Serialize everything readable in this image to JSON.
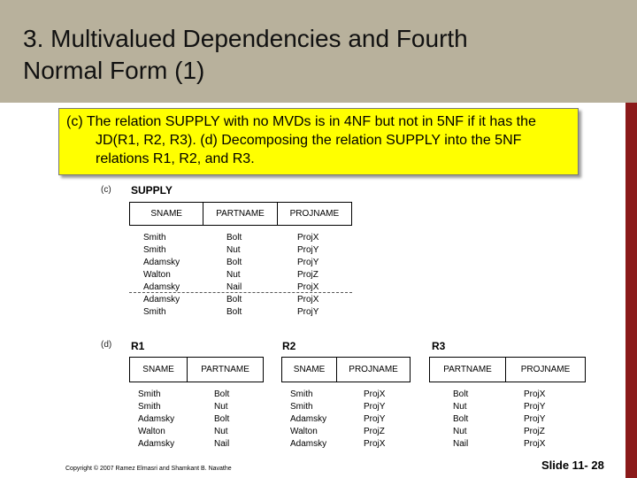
{
  "slide": {
    "title_line1": "3. Multivalued Dependencies and Fourth",
    "title_line2": "Normal Form (1)",
    "callout": "(c) The relation SUPPLY with no MVDs is in 4NF but not in 5NF if it has the JD(R1, R2, R3). (d) Decomposing the relation SUPPLY into the 5NF relations R1, R2, and R3.",
    "copyright": "Copyright © 2007 Ramez Elmasri and Shamkant B. Navathe",
    "slide_number": "Slide 11- 28"
  },
  "figure_c": {
    "label": "(c)",
    "relation": "SUPPLY",
    "columns": [
      "SNAME",
      "PARTNAME",
      "PROJNAME"
    ],
    "rows": [
      [
        "Smith",
        "Bolt",
        "ProjX"
      ],
      [
        "Smith",
        "Nut",
        "ProjY"
      ],
      [
        "Adamsky",
        "Bolt",
        "ProjY"
      ],
      [
        "Walton",
        "Nut",
        "ProjZ"
      ],
      [
        "Adamsky",
        "Nail",
        "ProjX"
      ],
      [
        "Adamsky",
        "Bolt",
        "ProjX"
      ],
      [
        "Smith",
        "Bolt",
        "ProjY"
      ]
    ]
  },
  "figure_d": {
    "label": "(d)",
    "r1": {
      "relation": "R1",
      "columns": [
        "SNAME",
        "PARTNAME"
      ],
      "rows": [
        [
          "Smith",
          "Bolt"
        ],
        [
          "Smith",
          "Nut"
        ],
        [
          "Adamsky",
          "Bolt"
        ],
        [
          "Walton",
          "Nut"
        ],
        [
          "Adamsky",
          "Nail"
        ]
      ]
    },
    "r2": {
      "relation": "R2",
      "columns": [
        "SNAME",
        "PROJNAME"
      ],
      "rows": [
        [
          "Smith",
          "ProjX"
        ],
        [
          "Smith",
          "ProjY"
        ],
        [
          "Adamsky",
          "ProjY"
        ],
        [
          "Walton",
          "ProjZ"
        ],
        [
          "Adamsky",
          "ProjX"
        ]
      ]
    },
    "r3": {
      "relation": "R3",
      "columns": [
        "PARTNAME",
        "PROJNAME"
      ],
      "rows": [
        [
          "Bolt",
          "ProjX"
        ],
        [
          "Nut",
          "ProjY"
        ],
        [
          "Bolt",
          "ProjY"
        ],
        [
          "Nut",
          "ProjZ"
        ],
        [
          "Nail",
          "ProjX"
        ]
      ]
    }
  }
}
